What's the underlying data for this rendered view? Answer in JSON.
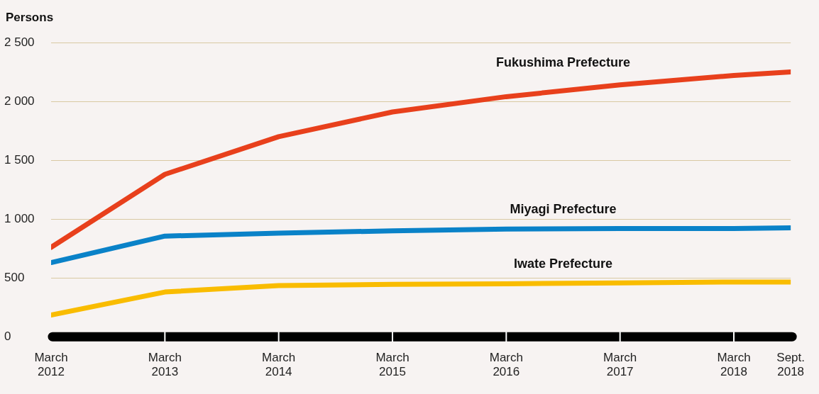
{
  "chart_data": {
    "type": "line",
    "ylabel": "Persons",
    "x": [
      "2012-03",
      "2013-03",
      "2014-03",
      "2015-03",
      "2016-03",
      "2017-03",
      "2018-03",
      "2018-09"
    ],
    "series": [
      {
        "name": "Fukushima Prefecture",
        "color": "#e8401c",
        "values": [
          760,
          1380,
          1700,
          1910,
          2040,
          2140,
          2220,
          2250
        ]
      },
      {
        "name": "Miyagi Prefecture",
        "color": "#0a82c8",
        "values": [
          630,
          855,
          880,
          900,
          915,
          920,
          920,
          925
        ]
      },
      {
        "name": "Iwate Prefecture",
        "color": "#f9bc00",
        "values": [
          185,
          380,
          435,
          445,
          450,
          457,
          465,
          465
        ]
      }
    ],
    "xlim": [
      "2012-03",
      "2018-09"
    ],
    "xticks": [
      {
        "value": "2012-03",
        "label": "March 2012"
      },
      {
        "value": "2013-03",
        "label": "March 2013"
      },
      {
        "value": "2014-03",
        "label": "March 2014"
      },
      {
        "value": "2015-03",
        "label": "March 2015"
      },
      {
        "value": "2016-03",
        "label": "March 2016"
      },
      {
        "value": "2017-03",
        "label": "March 2017"
      },
      {
        "value": "2018-03",
        "label": "March 2018"
      },
      {
        "value": "2018-09",
        "label": "Sept. 2018"
      }
    ],
    "ylim": [
      0,
      2500
    ],
    "yticks": [
      {
        "value": 0,
        "label": "0"
      },
      {
        "value": 500,
        "label": "500"
      },
      {
        "value": 1000,
        "label": "1 000"
      },
      {
        "value": 1500,
        "label": "1 500"
      },
      {
        "value": 2000,
        "label": "2 000"
      },
      {
        "value": 2500,
        "label": "2 500"
      }
    ],
    "grid": "y",
    "legend": false,
    "marker": "none",
    "line_style": "solid"
  }
}
